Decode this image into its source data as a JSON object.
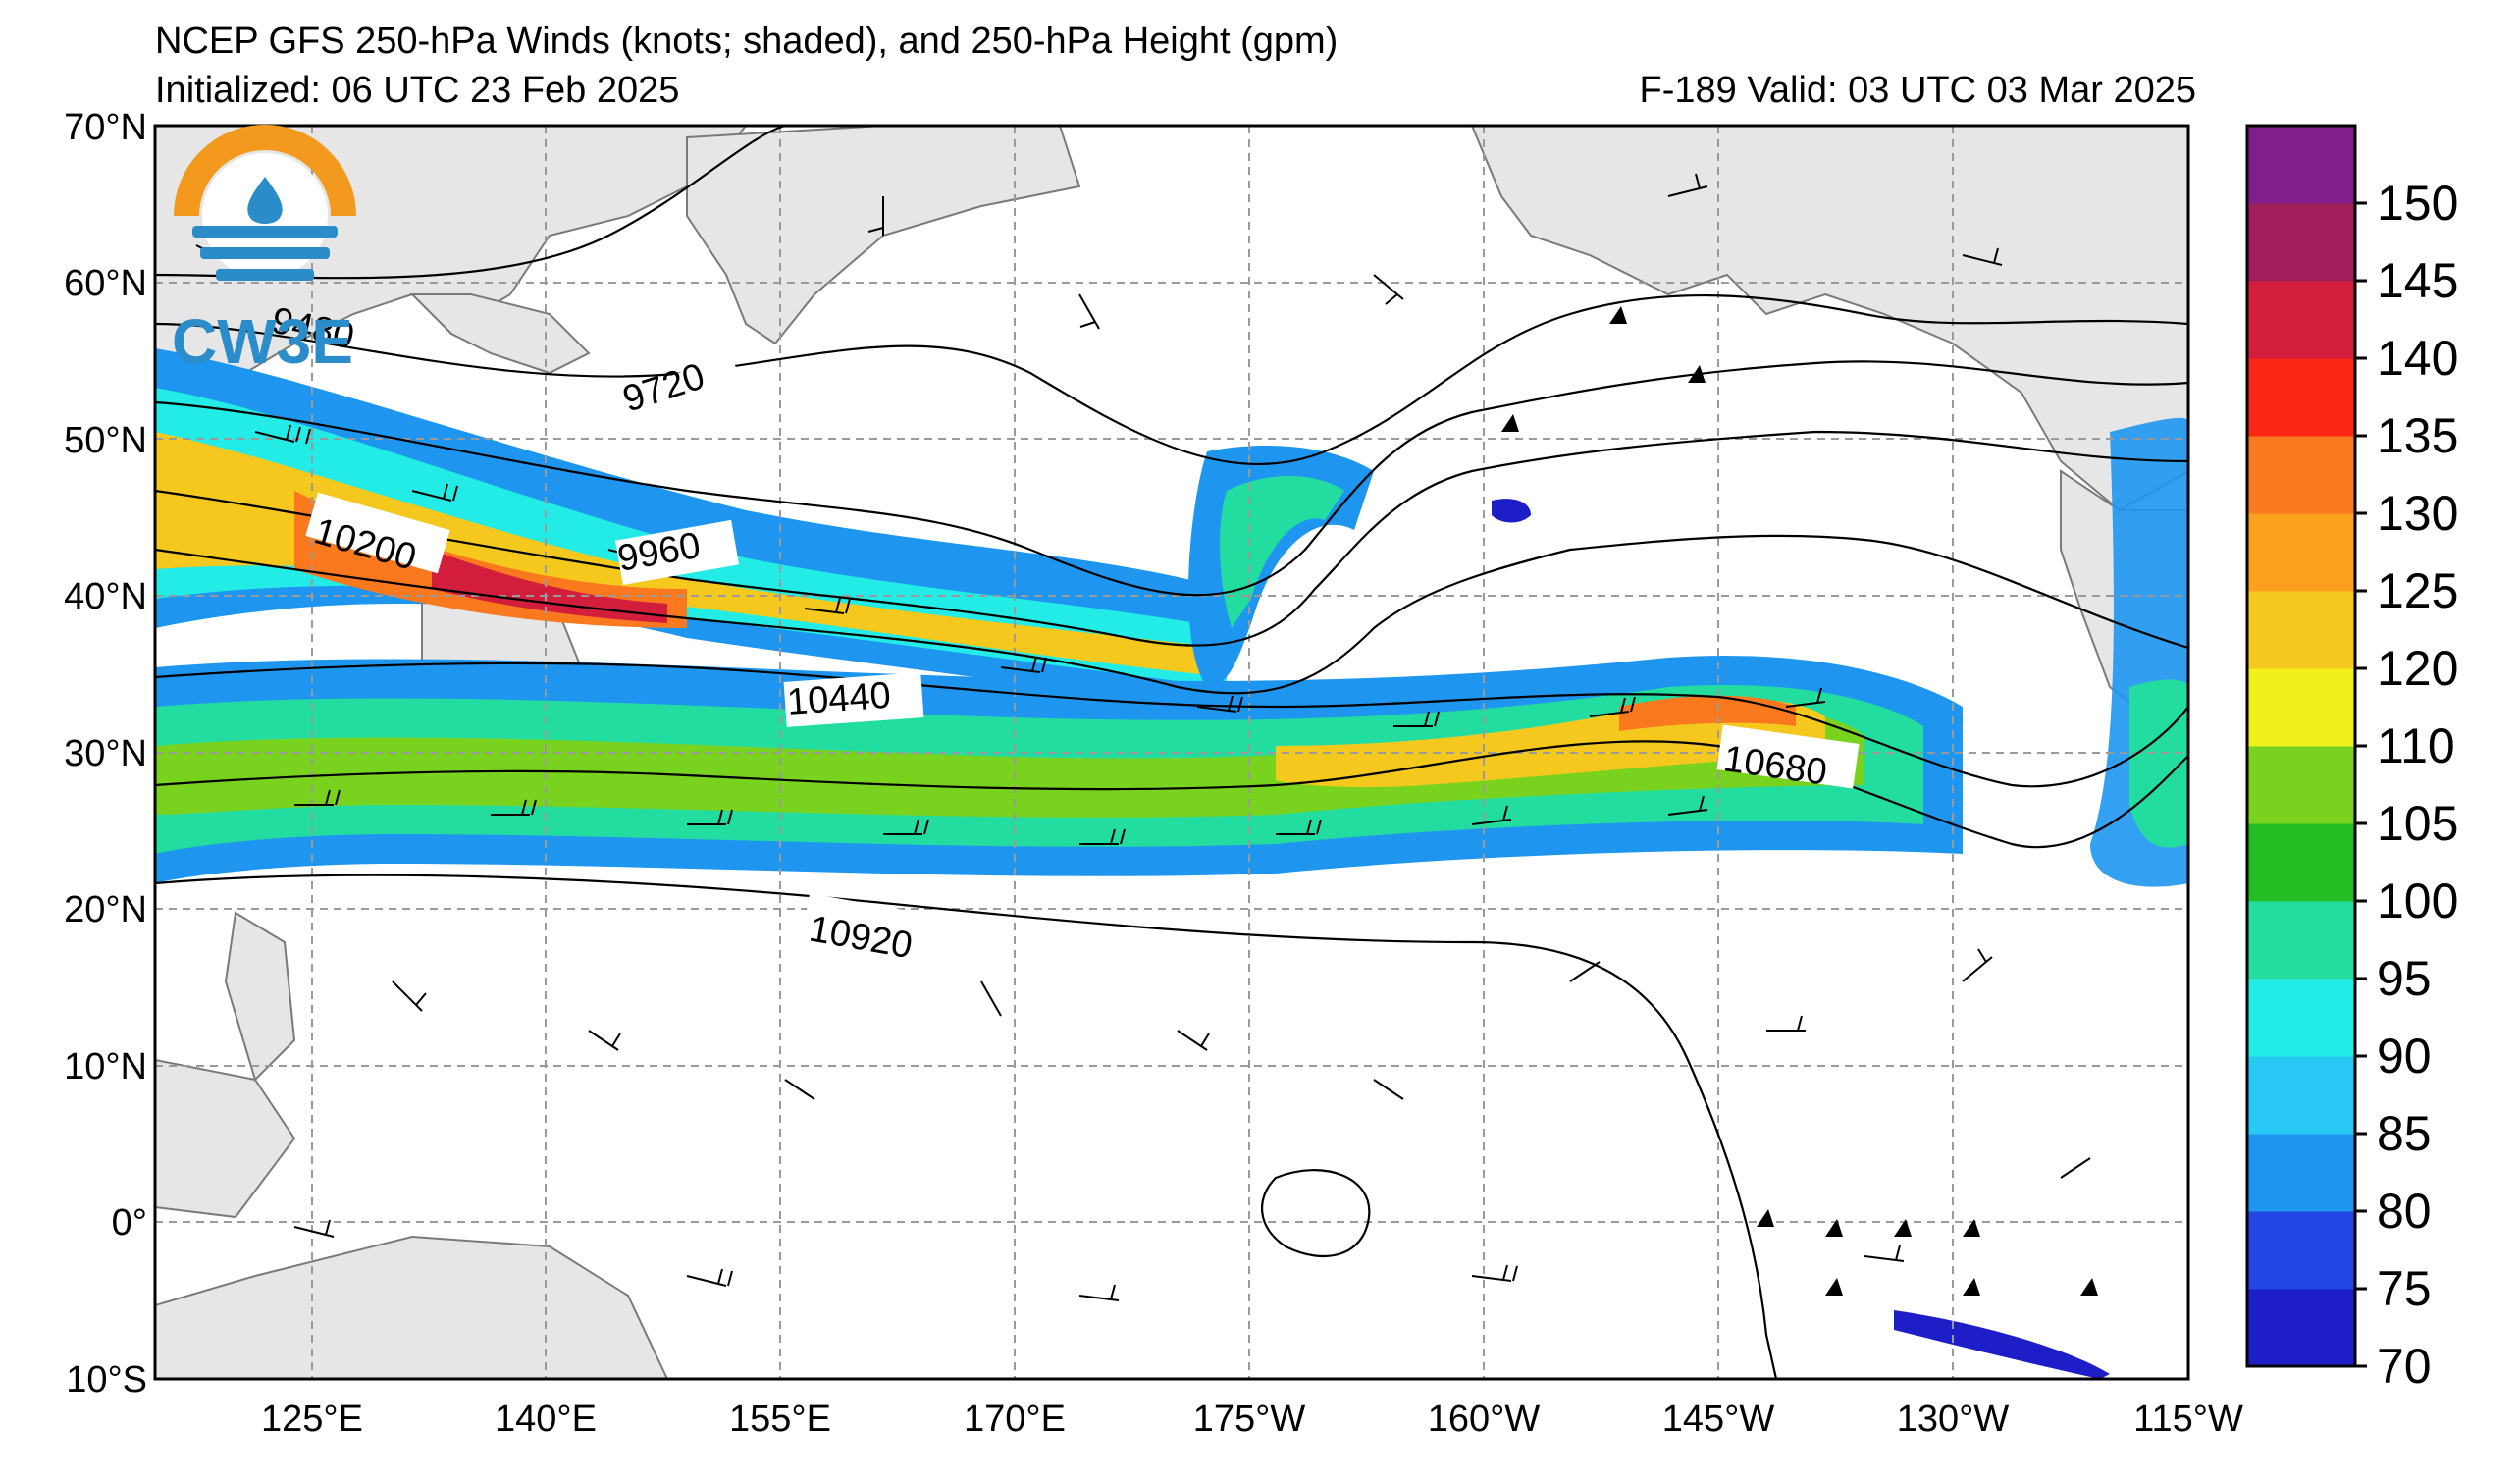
{
  "header": {
    "title": "NCEP GFS 250-hPa Winds (knots; shaded), and 250-hPa Height (gpm)",
    "initialized": "Initialized: 06 UTC 23 Feb 2025",
    "valid": "F-189  Valid: 03 UTC 03 Mar 2025"
  },
  "logo": {
    "text": "CW3E"
  },
  "axes": {
    "lat_labels": [
      "70°N",
      "60°N",
      "50°N",
      "40°N",
      "30°N",
      "20°N",
      "10°N",
      "0°",
      "10°S"
    ],
    "lon_labels": [
      "125°E",
      "140°E",
      "155°E",
      "170°E",
      "175°W",
      "160°W",
      "145°W",
      "130°W",
      "115°W"
    ]
  },
  "contour_labels": [
    "9480",
    "9720",
    "9960",
    "10200",
    "10440",
    "10680",
    "10920"
  ],
  "colorbar": {
    "ticks": [
      "70",
      "75",
      "80",
      "85",
      "90",
      "95",
      "100",
      "105",
      "110",
      "120",
      "125",
      "130",
      "135",
      "140",
      "145",
      "150"
    ],
    "colors": [
      "#1e1ec8",
      "#2346e6",
      "#1e96f0",
      "#28c8f5",
      "#23ebe6",
      "#23dca0",
      "#23be23",
      "#78d21e",
      "#f0f01e",
      "#f5c81e",
      "#faa01e",
      "#fa781e",
      "#fa2814",
      "#d21e3c",
      "#a01e5a",
      "#821e8c"
    ]
  },
  "colors": {
    "land": "#e6e6e6",
    "coast": "#7a7a7a",
    "grid": "#9a9a9a"
  }
}
